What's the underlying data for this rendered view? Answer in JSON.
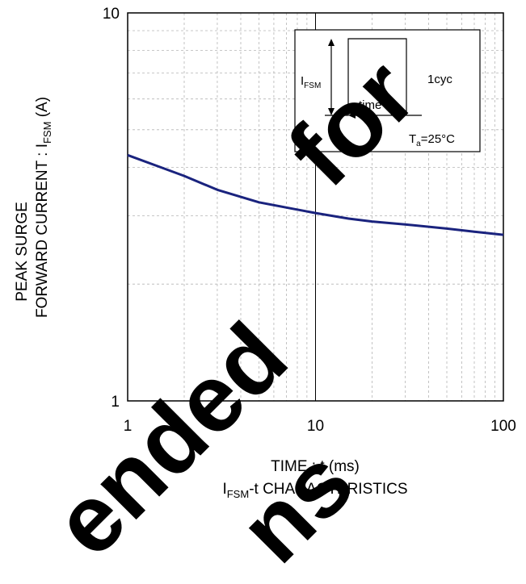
{
  "chart_data": {
    "type": "line",
    "title": "",
    "caption": {
      "main": "I",
      "sub": "FSM",
      "rest": "-t CHARACTERISTICS"
    },
    "xlabel": "TIME : t (ms)",
    "ylabel": {
      "line1": "PEAK SURGE",
      "line2_main": "FORWARD CURRENT : I",
      "line2_sub": "FSM",
      "line2_rest": " (A)"
    },
    "xscale": "log",
    "yscale": "log",
    "xlim": [
      1,
      100
    ],
    "ylim": [
      1,
      10
    ],
    "x_ticks": [
      "1",
      "10",
      "100"
    ],
    "y_ticks": [
      "1",
      "10"
    ],
    "grid": true,
    "series": [
      {
        "color": "#1a237e",
        "x": [
          1,
          1.5,
          2,
          3,
          5,
          7,
          10,
          15,
          20,
          30,
          50,
          70,
          100
        ],
        "y": [
          4.3,
          4.0,
          3.8,
          3.5,
          3.25,
          3.15,
          3.05,
          2.95,
          2.9,
          2.85,
          2.78,
          2.73,
          2.68
        ]
      }
    ],
    "inset": {
      "ifsm_main": "I",
      "ifsm_sub": "FSM",
      "time_label": "time",
      "cycle_label": "1cyc",
      "temp_main": "T",
      "temp_sub": "a",
      "temp_rest": "=25°C"
    }
  },
  "watermark": {
    "line_a": "for",
    "line_b": "ended",
    "line_c": "ns",
    "color": "#000000"
  }
}
